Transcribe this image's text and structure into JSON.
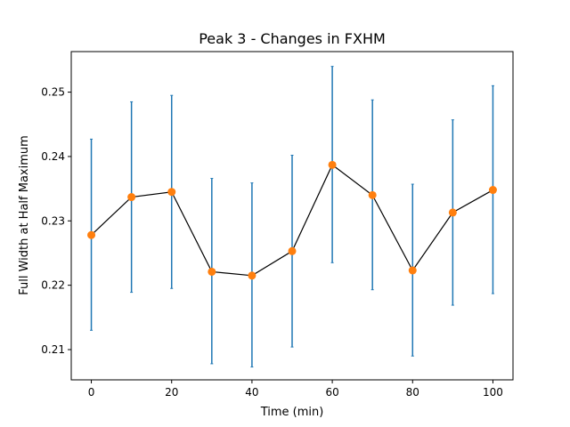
{
  "chart_data": {
    "type": "line",
    "title": "Peak 3 - Changes in FXHM",
    "xlabel": "Time (min)",
    "ylabel": "Full Width at Half Maximum",
    "xlim": [
      -5,
      105
    ],
    "ylim": [
      0.2053,
      0.2563
    ],
    "x_ticks": [
      0,
      20,
      40,
      60,
      80,
      100
    ],
    "y_ticks": [
      0.21,
      0.22,
      0.23,
      0.24,
      0.25
    ],
    "grid": false,
    "legend": "none",
    "series": [
      {
        "x": [
          0,
          10,
          20,
          30,
          40,
          50,
          60,
          70,
          80,
          90,
          100
        ],
        "values": [
          0.2278,
          0.2337,
          0.2345,
          0.2221,
          0.2215,
          0.2253,
          0.2387,
          0.234,
          0.2223,
          0.2313,
          0.2348
        ],
        "yerr_low": [
          0.213,
          0.2189,
          0.2195,
          0.2078,
          0.2073,
          0.2104,
          0.2235,
          0.2193,
          0.209,
          0.2169,
          0.2187
        ],
        "yerr_high": [
          0.2427,
          0.2485,
          0.2495,
          0.2366,
          0.2359,
          0.2402,
          0.254,
          0.2488,
          0.2357,
          0.2457,
          0.251
        ],
        "line_color": "#000000",
        "marker_color": "#ff7f0e",
        "errorbar_color": "#1f77b4"
      }
    ]
  }
}
